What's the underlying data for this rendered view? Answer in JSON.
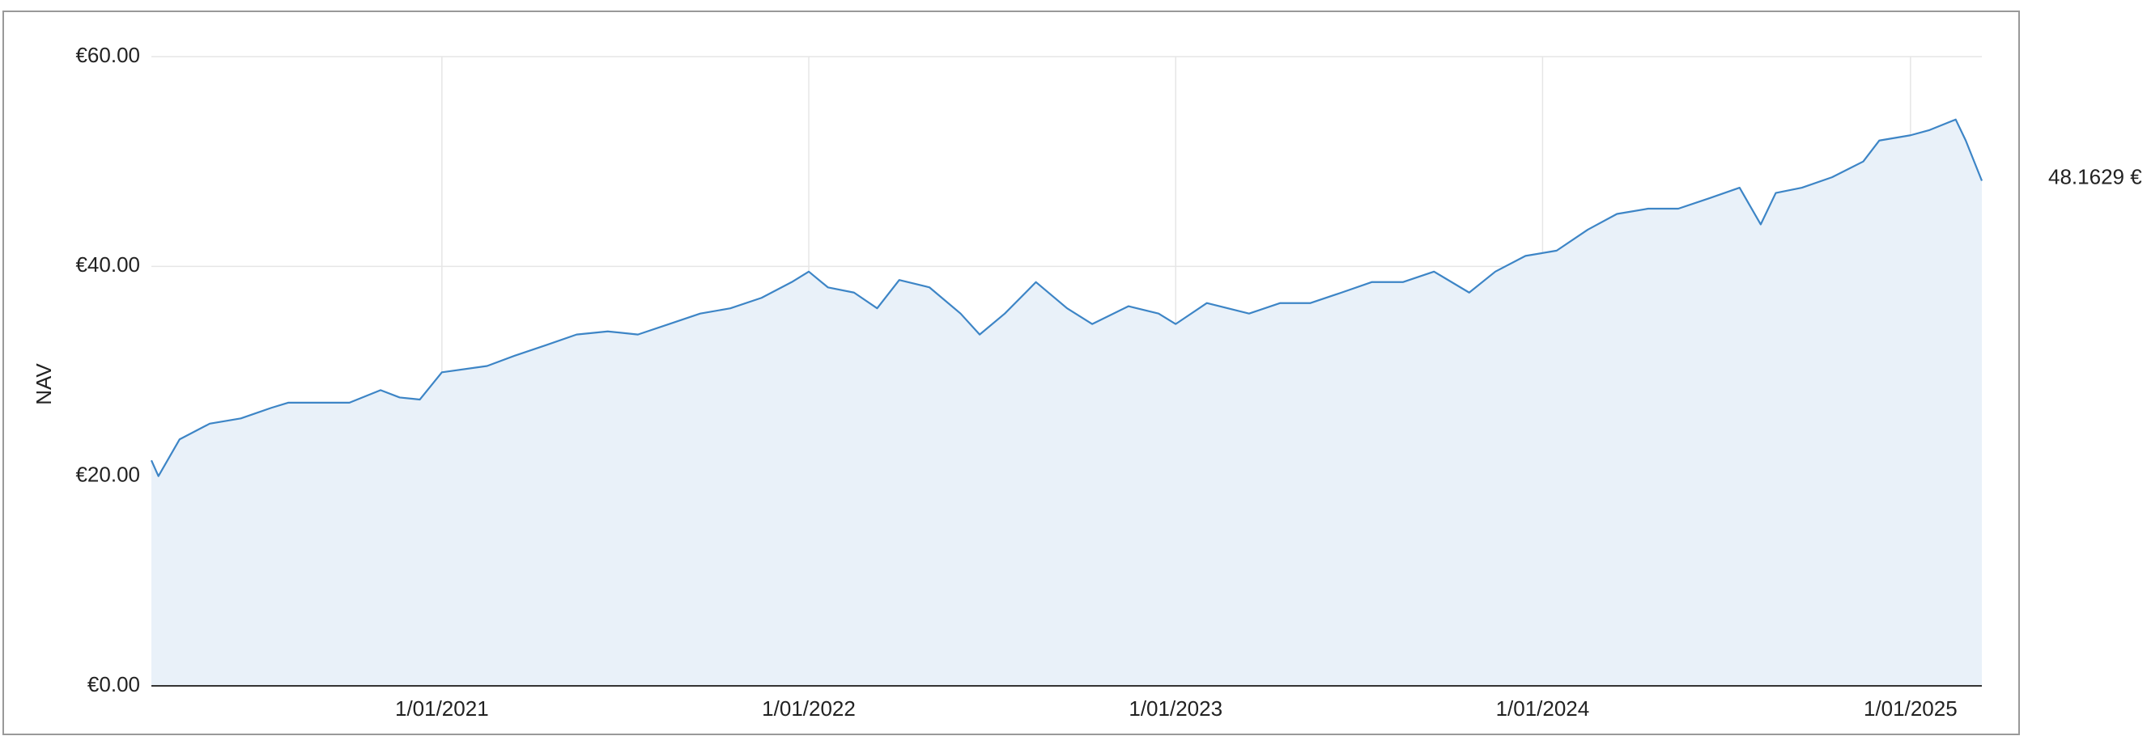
{
  "chart_data": {
    "type": "area",
    "y_label": "NAV",
    "color": "#3d85c6",
    "fill": "#e9f1f9",
    "grid": true,
    "xlim": [
      "2020-03-18",
      "2025-03-13"
    ],
    "xticks": [
      {
        "value": "2021-01-01",
        "label": "1/01/2021"
      },
      {
        "value": "2022-01-01",
        "label": "1/01/2022"
      },
      {
        "value": "2023-01-01",
        "label": "1/01/2023"
      },
      {
        "value": "2024-01-01",
        "label": "1/01/2024"
      },
      {
        "value": "2025-01-01",
        "label": "1/01/2025"
      }
    ],
    "ylim": [
      0,
      60
    ],
    "yticks": [
      {
        "value": 0,
        "label": "€0.00"
      },
      {
        "value": 20,
        "label": "€20.00"
      },
      {
        "value": 40,
        "label": "€40.00"
      },
      {
        "value": 60,
        "label": "€60.00"
      }
    ],
    "x": [
      "2020-03-18",
      "2020-03-25",
      "2020-04-15",
      "2020-05-15",
      "2020-06-15",
      "2020-07-15",
      "2020-08-01",
      "2020-09-01",
      "2020-10-01",
      "2020-11-01",
      "2020-11-20",
      "2020-12-10",
      "2021-01-01",
      "2021-02-15",
      "2021-03-15",
      "2021-04-15",
      "2021-05-15",
      "2021-06-15",
      "2021-07-15",
      "2021-08-15",
      "2021-09-15",
      "2021-10-15",
      "2021-11-15",
      "2021-12-15",
      "2022-01-01",
      "2022-01-20",
      "2022-02-15",
      "2022-03-10",
      "2022-04-01",
      "2022-05-01",
      "2022-06-01",
      "2022-06-20",
      "2022-07-15",
      "2022-08-15",
      "2022-09-15",
      "2022-10-10",
      "2022-11-15",
      "2022-12-15",
      "2023-01-01",
      "2023-02-01",
      "2023-03-15",
      "2023-04-15",
      "2023-05-15",
      "2023-06-15",
      "2023-07-15",
      "2023-08-15",
      "2023-09-15",
      "2023-10-20",
      "2023-11-15",
      "2023-12-15",
      "2024-01-15",
      "2024-02-15",
      "2024-03-15",
      "2024-04-15",
      "2024-05-15",
      "2024-06-15",
      "2024-07-15",
      "2024-08-05",
      "2024-08-20",
      "2024-09-15",
      "2024-10-15",
      "2024-11-15",
      "2024-12-01",
      "2025-01-01",
      "2025-01-20",
      "2025-02-15",
      "2025-02-25",
      "2025-03-13"
    ],
    "values": [
      21.5,
      20,
      23.5,
      25,
      25.5,
      26.5,
      27,
      27,
      27,
      28.2,
      27.5,
      27.3,
      29.9,
      30.5,
      31.5,
      32.5,
      33.5,
      33.8,
      33.5,
      34.5,
      35.5,
      36,
      37,
      38.5,
      39.5,
      38,
      37.5,
      36,
      38.7,
      38,
      35.5,
      33.5,
      35.5,
      38.5,
      36,
      34.5,
      36.2,
      35.5,
      34.5,
      36.5,
      35.5,
      36.5,
      36.5,
      37.5,
      38.5,
      38.5,
      39.5,
      37.5,
      39.5,
      41,
      41.5,
      43.5,
      45,
      45.5,
      45.5,
      46.5,
      47.5,
      44,
      47,
      47.5,
      48.5,
      50,
      52,
      52.5,
      53,
      54,
      52,
      48.1629
    ],
    "value_labels": [
      null,
      null,
      null,
      null,
      null,
      null,
      null,
      null,
      null,
      null,
      null,
      null,
      null,
      null,
      null,
      null,
      null,
      null,
      null,
      null,
      null,
      null,
      null,
      null,
      null,
      null,
      null,
      null,
      null,
      null,
      null,
      null,
      null,
      null,
      null,
      null,
      null,
      null,
      null,
      null,
      null,
      null,
      null,
      null,
      null,
      null,
      null,
      null,
      null,
      null,
      null,
      null,
      null,
      null,
      null,
      null,
      null,
      null,
      null,
      null,
      null,
      null,
      null,
      null,
      null,
      null,
      null,
      "48.1629 €"
    ]
  }
}
